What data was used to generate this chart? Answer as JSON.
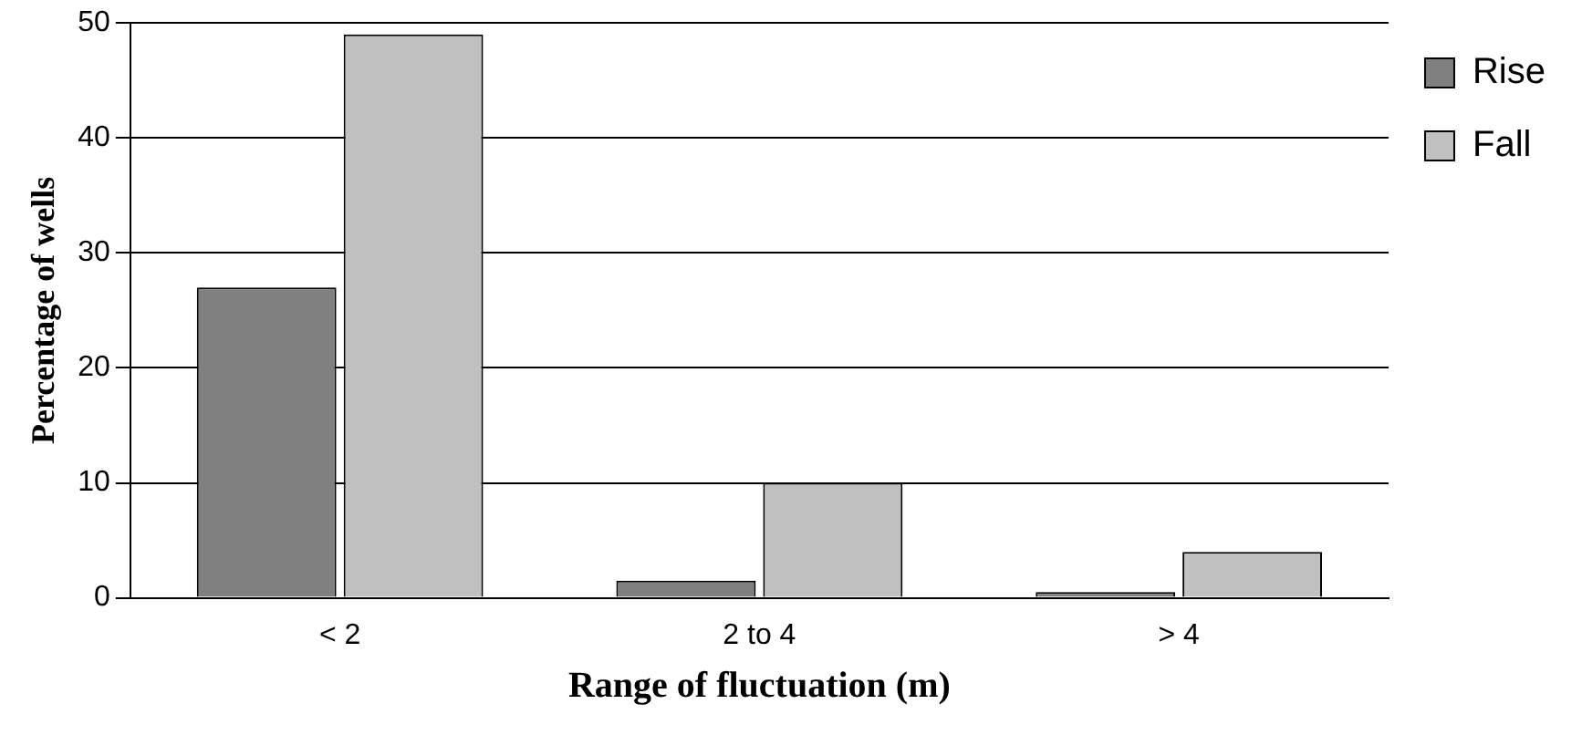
{
  "chart_data": {
    "type": "bar",
    "xlabel": "Range of fluctuation (m)",
    "ylabel": "Percentage of wells",
    "categories": [
      "< 2",
      "2 to 4",
      "> 4"
    ],
    "series": [
      {
        "name": "Rise",
        "color": "#808080",
        "values": [
          27,
          1.5,
          0.5
        ]
      },
      {
        "name": "Fall",
        "color": "#c0c0c0",
        "values": [
          49,
          10,
          4
        ]
      }
    ],
    "ylim": [
      0,
      50
    ],
    "yticks": [
      0,
      10,
      20,
      30,
      40,
      50
    ],
    "grid": "y",
    "legend": "top right"
  }
}
